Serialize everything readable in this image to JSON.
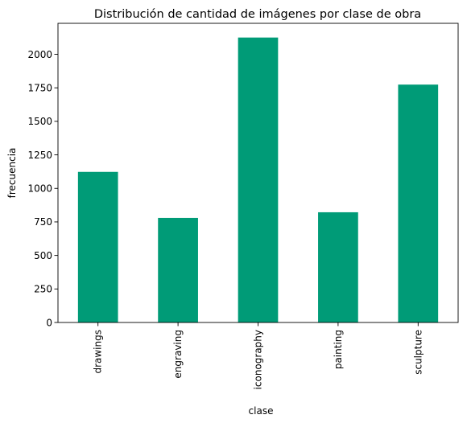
{
  "chart_data": {
    "type": "bar",
    "title": "Distribución de cantidad de imágenes por clase de obra",
    "xlabel": "clase",
    "ylabel": "frecuencia",
    "categories": [
      "drawings",
      "engraving",
      "iconography",
      "painting",
      "sculpture"
    ],
    "values": [
      1123,
      780,
      2125,
      822,
      1774
    ],
    "ylim": [
      0,
      2231
    ],
    "yticks": [
      0,
      250,
      500,
      750,
      1000,
      1250,
      1500,
      1750,
      2000
    ],
    "grid": false,
    "legend": "none",
    "bar_color": "#009b77"
  }
}
